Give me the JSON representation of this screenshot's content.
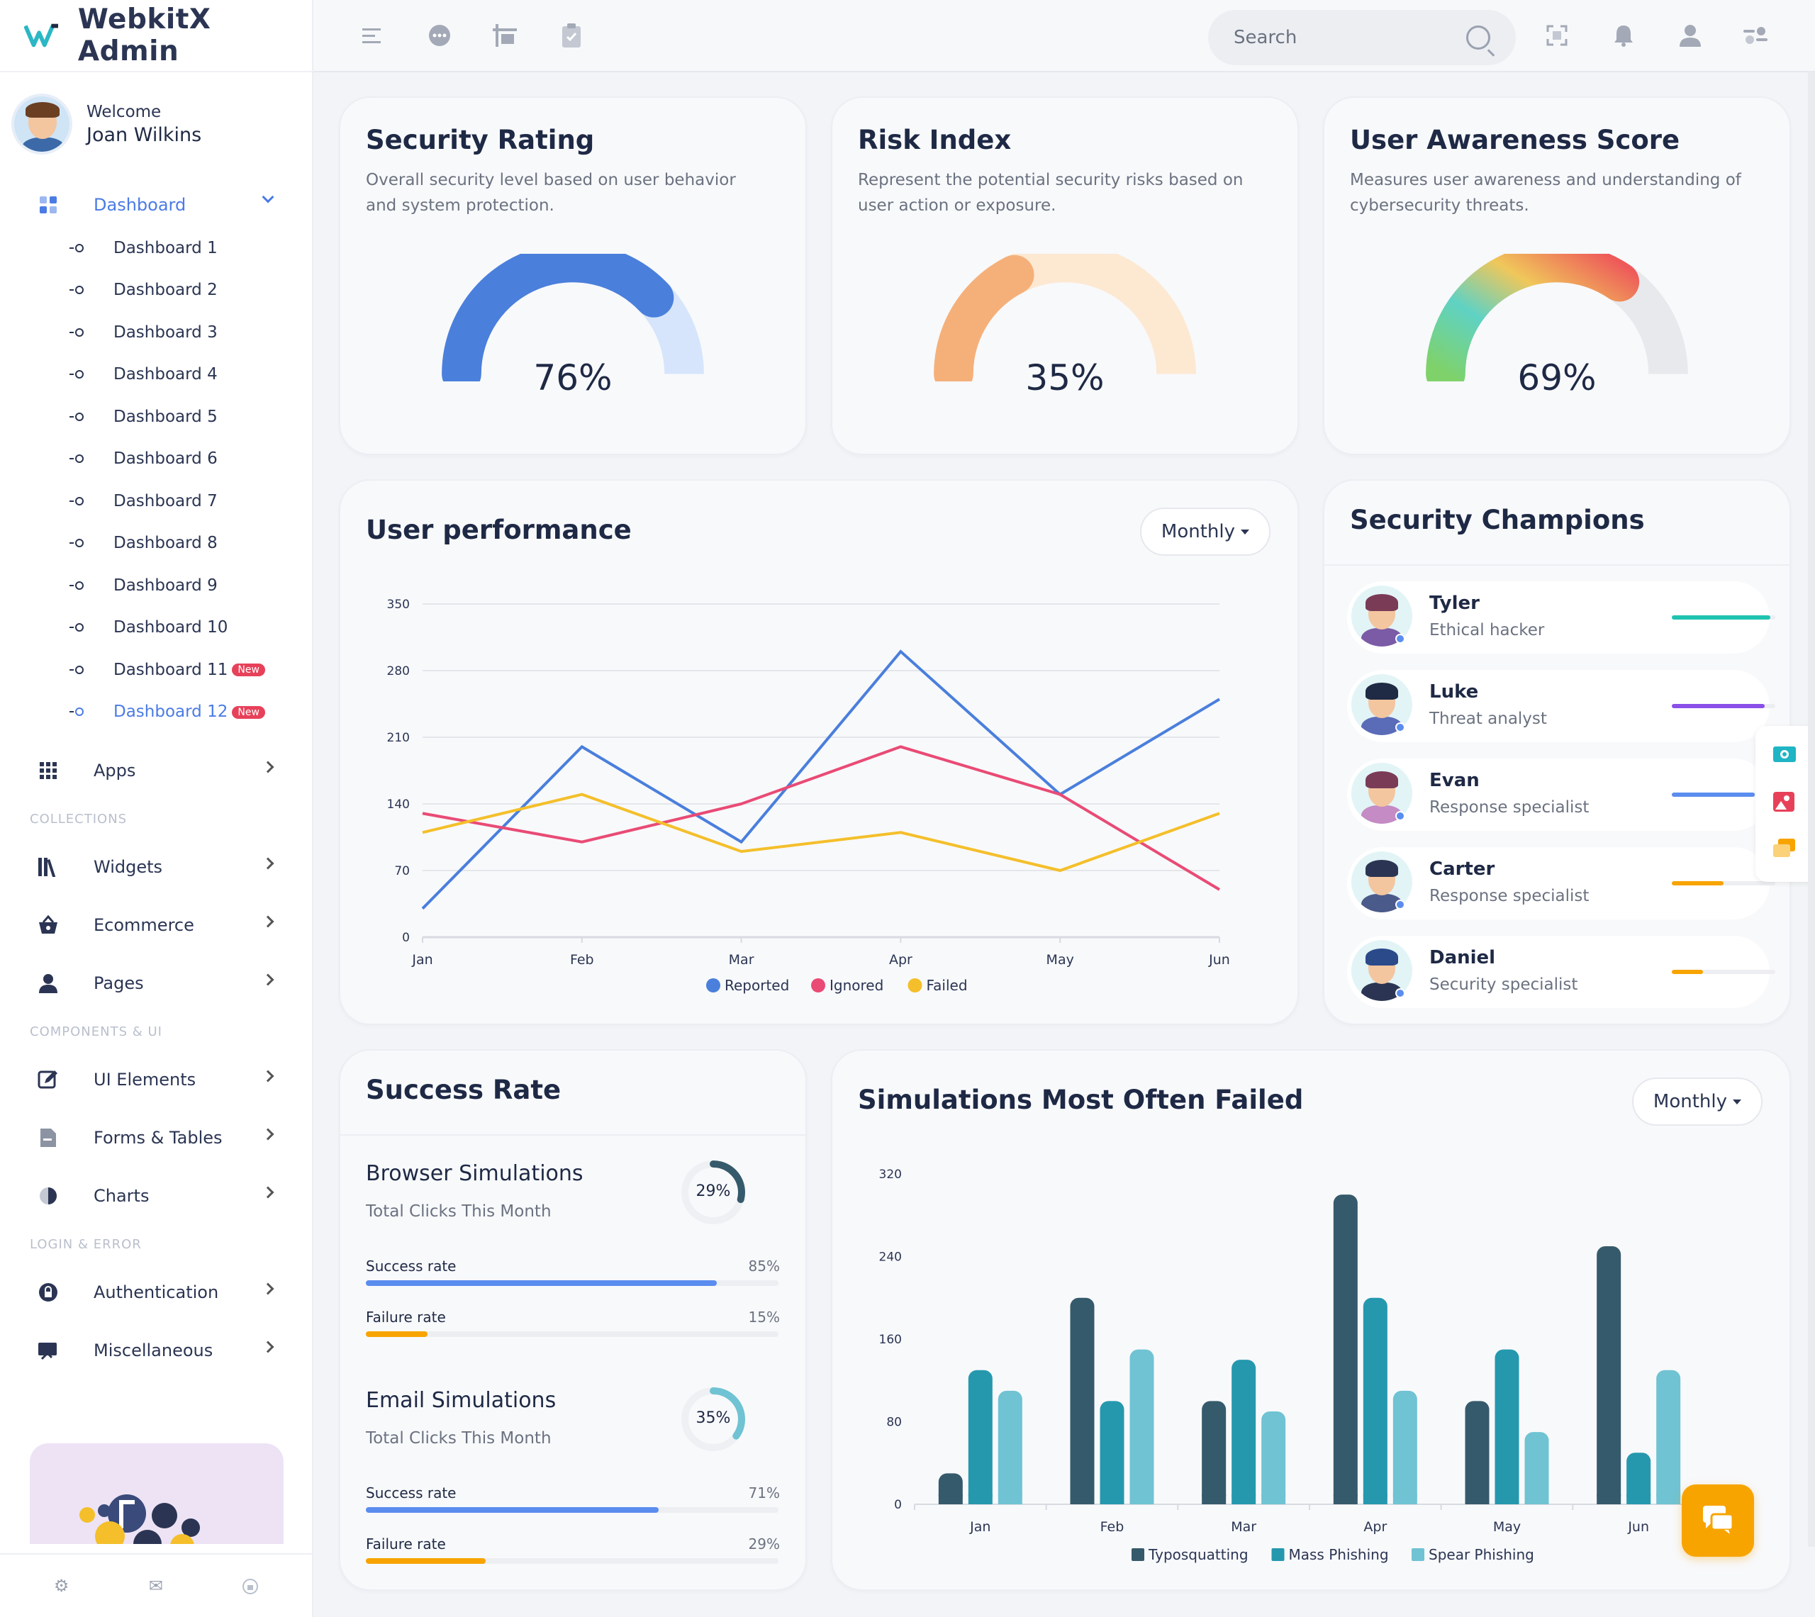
{
  "brand": {
    "name": "WebkitX Admin",
    "accent": "#2bb7c4"
  },
  "profile": {
    "welcome": "Welcome",
    "name": "Joan Wilkins"
  },
  "sidebar": {
    "dashboard_label": "Dashboard",
    "dashboards": [
      "Dashboard 1",
      "Dashboard 2",
      "Dashboard 3",
      "Dashboard 4",
      "Dashboard 5",
      "Dashboard 6",
      "Dashboard 7",
      "Dashboard 8",
      "Dashboard 9",
      "Dashboard 10",
      "Dashboard 11",
      "Dashboard 12"
    ],
    "new_badge": "New",
    "apps": "Apps",
    "collections_label": "COLLECTIONS",
    "widgets": "Widgets",
    "ecommerce": "Ecommerce",
    "pages": "Pages",
    "components_label": "COMPONENTS & UI",
    "ui_elements": "UI Elements",
    "forms_tables": "Forms & Tables",
    "charts": "Charts",
    "login_label": "LOGIN & ERROR",
    "authentication": "Authentication",
    "miscellaneous": "Miscellaneous"
  },
  "topbar": {
    "search_placeholder": "Search"
  },
  "security_rating": {
    "title": "Security Rating",
    "desc": "Overall security level based on user behavior and system protection.",
    "value": "76%",
    "fraction": 0.76,
    "color": "#4a7fdc",
    "track": "#d6e5fb"
  },
  "risk_index": {
    "title": "Risk Index",
    "desc": "Represent the potential security risks based on user action or exposure.",
    "value": "35%",
    "fraction": 0.35,
    "color": "#f5b07a",
    "track": "#fde8d2"
  },
  "awareness": {
    "title": "User Awareness Score",
    "desc": "Measures user awareness and understanding of cybersecurity threats.",
    "value": "69%",
    "fraction": 0.69,
    "track": "#e8e9ec"
  },
  "user_performance": {
    "title": "User performance",
    "dropdown": "Monthly"
  },
  "chart_data": [
    {
      "type": "line",
      "x": [
        "Jan",
        "Feb",
        "Mar",
        "Apr",
        "May",
        "Jun"
      ],
      "ylim": [
        0,
        350
      ],
      "yticks": [
        0,
        70,
        140,
        210,
        280,
        350
      ],
      "series": [
        {
          "name": "Reported",
          "color": "#4a7fdc",
          "values": [
            30,
            200,
            100,
            300,
            150,
            250
          ]
        },
        {
          "name": "Ignored",
          "color": "#e94b75",
          "values": [
            130,
            100,
            140,
            200,
            150,
            50
          ]
        },
        {
          "name": "Failed",
          "color": "#f4bf2a",
          "values": [
            110,
            150,
            90,
            110,
            70,
            130
          ]
        }
      ],
      "legend": "bottom"
    },
    {
      "type": "bar",
      "categories": [
        "Jan",
        "Feb",
        "Mar",
        "Apr",
        "May",
        "Jun"
      ],
      "ylim": [
        0,
        320
      ],
      "yticks": [
        0,
        80,
        160,
        240,
        320
      ],
      "series": [
        {
          "name": "Typosquatting",
          "color": "#355a6b",
          "values": [
            30,
            200,
            100,
            300,
            100,
            250
          ]
        },
        {
          "name": "Mass Phishing",
          "color": "#2598ae",
          "values": [
            130,
            100,
            140,
            200,
            150,
            50
          ]
        },
        {
          "name": "Spear Phishing",
          "color": "#6fc3d3",
          "values": [
            110,
            150,
            90,
            110,
            70,
            130
          ]
        }
      ],
      "legend": "bottom"
    }
  ],
  "champions": {
    "title": "Security Champions",
    "items": [
      {
        "name": "Tyler",
        "role": "Ethical hacker",
        "level": 0.95,
        "color": "#1fc3b0",
        "hair": "#7a3b57",
        "shirt": "#7b5aa6"
      },
      {
        "name": "Luke",
        "role": "Threat analyst",
        "level": 0.9,
        "color": "#8a4fe8",
        "hair": "#1f2a44",
        "shirt": "#5a6bb8"
      },
      {
        "name": "Evan",
        "role": "Response specialist",
        "level": 0.8,
        "color": "#5b8def",
        "hair": "#7a3b57",
        "shirt": "#c48bc4"
      },
      {
        "name": "Carter",
        "role": "Response specialist",
        "level": 0.5,
        "color": "#f7a400",
        "hair": "#2b3553",
        "shirt": "#4a5a8a"
      },
      {
        "name": "Daniel",
        "role": "Security specialist",
        "level": 0.3,
        "color": "#f7a400",
        "hair": "#2b4a8a",
        "shirt": "#2b3553"
      }
    ]
  },
  "success_rate": {
    "title": "Success Rate",
    "browser": {
      "title": "Browser Simulations",
      "sub": "Total Clicks This Month",
      "ring": "29%",
      "ring_fraction": 0.29,
      "ring_color": "#355a6b",
      "success_label": "Success rate",
      "success_value": "85%",
      "success_fraction": 0.85,
      "failure_label": "Failure rate",
      "failure_value": "15%",
      "failure_fraction": 0.15
    },
    "email": {
      "title": "Email Simulations",
      "sub": "Total Clicks This Month",
      "ring": "35%",
      "ring_fraction": 0.35,
      "ring_color": "#6fc3d3",
      "success_label": "Success rate",
      "success_value": "71%",
      "success_fraction": 0.71,
      "failure_label": "Failure rate",
      "failure_value": "29%",
      "failure_fraction": 0.29
    },
    "success_color": "#5b8def",
    "failure_color": "#f7a400"
  },
  "sim_failed": {
    "title": "Simulations Most Often Failed",
    "dropdown": "Monthly"
  }
}
